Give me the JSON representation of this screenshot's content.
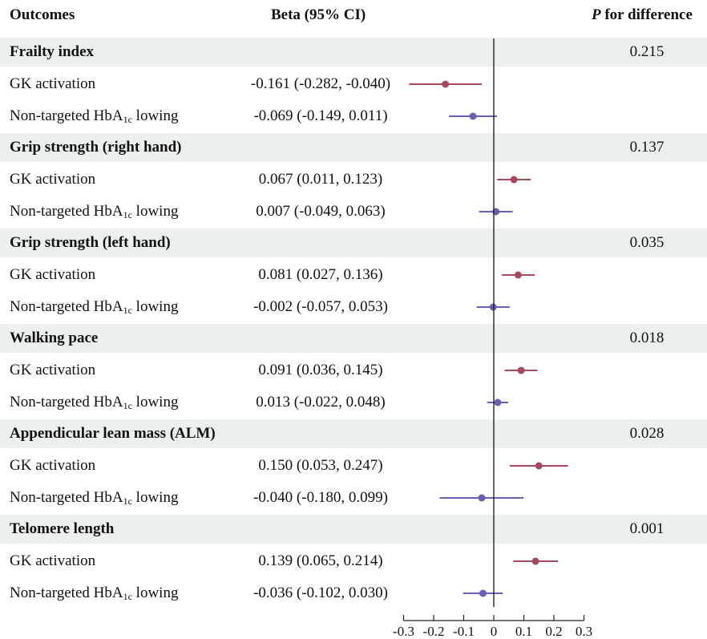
{
  "header": {
    "outcomes": "Outcomes",
    "beta": "Beta (95% CI)",
    "p_italic": "P",
    "p_rest": " for difference"
  },
  "colors": {
    "gk": "#a34a5f",
    "hba1c": "#6a5fb3",
    "band": "#ecefef",
    "axis": "#222222"
  },
  "chart_data": {
    "type": "forest",
    "xlim": [
      -0.3,
      0.3
    ],
    "ticks": [
      -0.3,
      -0.2,
      -0.1,
      0,
      0.1,
      0.2,
      0.3
    ],
    "tick_labels": [
      "-0.3",
      "-0.2",
      "-0.1",
      "0",
      "0.1",
      "0.2",
      "0.3"
    ],
    "series_labels": {
      "gk": "GK activation",
      "hba1c_main": "Non-targeted HbA",
      "hba1c_sub": "1c",
      "hba1c_tail": " lowing"
    },
    "groups": [
      {
        "title": "Frailty index",
        "p": "0.215",
        "rows": [
          {
            "series": "gk",
            "label": "GK activation",
            "beta_text": "-0.161 (-0.282, -0.040)",
            "est": -0.161,
            "lo": -0.282,
            "hi": -0.04
          },
          {
            "series": "hba1c",
            "label": "Non-targeted HbA1c lowing",
            "beta_text": "-0.069 (-0.149, 0.011)",
            "est": -0.069,
            "lo": -0.149,
            "hi": 0.011
          }
        ]
      },
      {
        "title": "Grip strength (right hand)",
        "p": "0.137",
        "rows": [
          {
            "series": "gk",
            "label": "GK activation",
            "beta_text": "0.067 (0.011, 0.123)",
            "est": 0.067,
            "lo": 0.011,
            "hi": 0.123
          },
          {
            "series": "hba1c",
            "label": "Non-targeted HbA1c lowing",
            "beta_text": "0.007 (-0.049, 0.063)",
            "est": 0.007,
            "lo": -0.049,
            "hi": 0.063
          }
        ]
      },
      {
        "title": "Grip strength (left hand)",
        "p": "0.035",
        "rows": [
          {
            "series": "gk",
            "label": "GK activation",
            "beta_text": "0.081 (0.027, 0.136)",
            "est": 0.081,
            "lo": 0.027,
            "hi": 0.136
          },
          {
            "series": "hba1c",
            "label": "Non-targeted HbA1c lowing",
            "beta_text": "-0.002 (-0.057, 0.053)",
            "est": -0.002,
            "lo": -0.057,
            "hi": 0.053
          }
        ]
      },
      {
        "title": "Walking pace",
        "p": "0.018",
        "rows": [
          {
            "series": "gk",
            "label": "GK activation",
            "beta_text": "0.091 (0.036, 0.145)",
            "est": 0.091,
            "lo": 0.036,
            "hi": 0.145
          },
          {
            "series": "hba1c",
            "label": "Non-targeted HbA1c lowing",
            "beta_text": "0.013 (-0.022, 0.048)",
            "est": 0.013,
            "lo": -0.022,
            "hi": 0.048
          }
        ]
      },
      {
        "title": "Appendicular lean mass (ALM)",
        "p": "0.028",
        "rows": [
          {
            "series": "gk",
            "label": "GK activation",
            "beta_text": "0.150 (0.053, 0.247)",
            "est": 0.15,
            "lo": 0.053,
            "hi": 0.247
          },
          {
            "series": "hba1c",
            "label": "Non-targeted HbA1c lowing",
            "beta_text": "-0.040 (-0.180, 0.099)",
            "est": -0.04,
            "lo": -0.18,
            "hi": 0.099
          }
        ]
      },
      {
        "title": "Telomere length",
        "p": "0.001",
        "rows": [
          {
            "series": "gk",
            "label": "GK activation",
            "beta_text": "0.139 (0.065, 0.214)",
            "est": 0.139,
            "lo": 0.065,
            "hi": 0.214
          },
          {
            "series": "hba1c",
            "label": "Non-targeted HbA1c lowing",
            "beta_text": "-0.036 (-0.102, 0.030)",
            "est": -0.036,
            "lo": -0.102,
            "hi": 0.03
          }
        ]
      }
    ]
  }
}
